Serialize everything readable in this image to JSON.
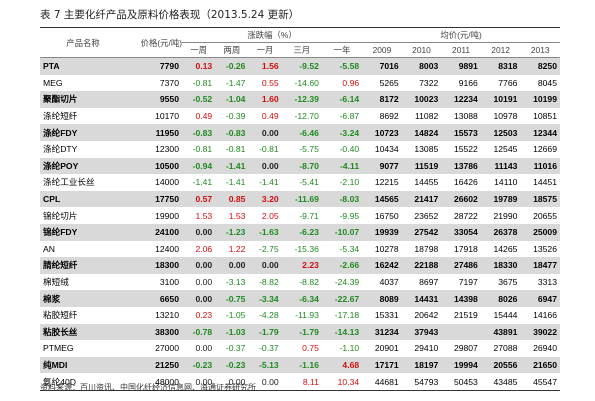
{
  "header": {
    "title": "表 7 主要化纤产品及原料价格表现（2013.5.24 更新）"
  },
  "table": {
    "columns": {
      "name": "产品名称",
      "price": "价格(元/吨)",
      "change": "涨跌幅（%）",
      "change_periods": [
        "一周",
        "两周",
        "一月",
        "三月",
        "一年"
      ],
      "average": "均价(元/吨)",
      "years": [
        "2009",
        "2010",
        "2011",
        "2012",
        "2013"
      ]
    },
    "rows": [
      [
        "PTA",
        "7790",
        "0.13",
        "-0.26",
        "1.56",
        "-9.52",
        "-5.58",
        "7016",
        "8003",
        "9891",
        "8318",
        "8250"
      ],
      [
        "MEG",
        "7370",
        "-0.81",
        "-1.47",
        "0.55",
        "-14.60",
        "0.96",
        "5265",
        "7322",
        "9166",
        "7766",
        "8045"
      ],
      [
        "聚酯切片",
        "9550",
        "-0.52",
        "-1.04",
        "1.60",
        "-12.39",
        "-6.14",
        "8172",
        "10023",
        "12234",
        "10191",
        "10199"
      ],
      [
        "涤纶短纤",
        "10170",
        "0.49",
        "-0.39",
        "0.49",
        "-12.70",
        "-6.87",
        "8692",
        "11082",
        "13088",
        "10978",
        "10851"
      ],
      [
        "涤纶FDY",
        "11950",
        "-0.83",
        "-0.83",
        "0.00",
        "-6.46",
        "-3.24",
        "10723",
        "14824",
        "15573",
        "12503",
        "12344"
      ],
      [
        "涤纶DTY",
        "12300",
        "-0.81",
        "-0.81",
        "-0.81",
        "-5.75",
        "-0.40",
        "10434",
        "13085",
        "15522",
        "12545",
        "12669"
      ],
      [
        "涤纶POY",
        "10500",
        "-0.94",
        "-1.41",
        "0.00",
        "-8.70",
        "-4.11",
        "9077",
        "11519",
        "13786",
        "11143",
        "11016"
      ],
      [
        "涤纶工业长丝",
        "14000",
        "-1.41",
        "-1.41",
        "-1.41",
        "-5.41",
        "-2.10",
        "12215",
        "14455",
        "16426",
        "14110",
        "14451"
      ],
      [
        "CPL",
        "17750",
        "0.57",
        "0.85",
        "3.20",
        "-11.69",
        "-8.03",
        "14565",
        "21417",
        "26602",
        "19789",
        "18575"
      ],
      [
        "锦纶切片",
        "19900",
        "1.53",
        "1.53",
        "2.05",
        "-9.71",
        "-9.95",
        "16750",
        "23652",
        "28722",
        "21990",
        "20655"
      ],
      [
        "锦纶FDY",
        "24100",
        "0.00",
        "-1.23",
        "-1.63",
        "-6.23",
        "-10.07",
        "19939",
        "27542",
        "33054",
        "26378",
        "25009"
      ],
      [
        "AN",
        "12400",
        "2.06",
        "1.22",
        "-2.75",
        "-15.36",
        "-5.34",
        "10278",
        "18798",
        "17918",
        "14265",
        "13526"
      ],
      [
        "腈纶短纤",
        "18300",
        "0.00",
        "0.00",
        "0.00",
        "2.23",
        "-2.66",
        "16242",
        "22188",
        "27486",
        "18330",
        "18477"
      ],
      [
        "棉短绒",
        "3100",
        "0.00",
        "-3.13",
        "-8.82",
        "-8.82",
        "-24.39",
        "4037",
        "8697",
        "7197",
        "3675",
        "3313"
      ],
      [
        "棉浆",
        "6650",
        "0.00",
        "-0.75",
        "-3.34",
        "-6.34",
        "-22.67",
        "8089",
        "14431",
        "14398",
        "8026",
        "6947"
      ],
      [
        "粘胶短纤",
        "13210",
        "0.23",
        "-1.05",
        "-4.28",
        "-11.93",
        "-17.18",
        "15331",
        "20642",
        "21519",
        "15444",
        "14166"
      ],
      [
        "粘胶长丝",
        "38300",
        "-0.78",
        "-1.03",
        "-1.79",
        "-1.79",
        "-14.13",
        "31234",
        "37943",
        null,
        "43891",
        "39022"
      ],
      [
        "PTMEG",
        "27000",
        "0.00",
        "-0.37",
        "-0.37",
        "0.75",
        "-1.10",
        "20901",
        "29410",
        "29807",
        "27088",
        "26940"
      ],
      [
        "纯MDI",
        "21250",
        "-0.23",
        "-0.23",
        "-5.13",
        "-1.16",
        "4.68",
        "17171",
        "18197",
        "19994",
        "20556",
        "21650"
      ],
      [
        "氨纶40D",
        "48000",
        "0.00",
        "0.00",
        "0.00",
        "8.11",
        "10.34",
        "44681",
        "54793",
        "50453",
        "43485",
        "45547"
      ]
    ]
  },
  "footer": {
    "source": "资料来源：百川资讯、中国化纤经济信息网、海通证券研究所"
  }
}
